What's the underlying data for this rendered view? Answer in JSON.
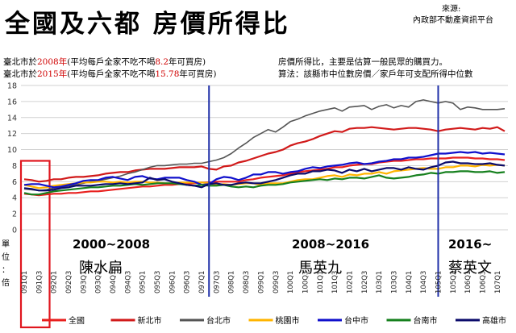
{
  "title": "全國及六都 房價所得比",
  "source": {
    "label": "來源:",
    "org": "內政部不動產資訊平台"
  },
  "notes_left": [
    {
      "pre": "臺北市於",
      "year": "2008年",
      "mid": "(平均每戶全家不吃不喝",
      "value": "8.2",
      "post": "年可買房)"
    },
    {
      "pre": "臺北市於",
      "year": "2015年",
      "mid": "(平均每戶全家不吃不喝",
      "value": "15.78",
      "post": "年可買房)"
    }
  ],
  "notes_right": [
    "房價所得比，主要是估算一般民眾的購買力。",
    "算法：該縣市中位數房價／家戶年可支配所得中位數"
  ],
  "ylabel": "單位：倍",
  "eras": [
    {
      "years": "2000~2008",
      "name": "陳水扁"
    },
    {
      "years": "2008~2016",
      "name": "馬英九"
    },
    {
      "years": "2016~",
      "name": "蔡英文"
    }
  ],
  "colors": {
    "全國": "#e8201e",
    "新北市": "#d11a1a",
    "台北市": "#555555",
    "桃園市": "#ffb400",
    "台中市": "#1010cc",
    "台南市": "#16801e",
    "高雄市": "#0b0b6b",
    "divider": "#1f2fa8",
    "highlight": "#e0161e"
  },
  "chart_data": {
    "type": "line",
    "title": "全國及六都 房價所得比",
    "ylabel": "單位：倍",
    "xlabel": "",
    "ylim": [
      0,
      18
    ],
    "yticks": [
      0,
      2,
      4,
      6,
      8,
      10,
      12,
      14,
      16,
      18
    ],
    "grid": true,
    "legend": "bottom",
    "x": [
      "091Q1",
      "091Q2",
      "091Q3",
      "091Q4",
      "092Q1",
      "092Q2",
      "092Q3",
      "092Q4",
      "093Q1",
      "093Q2",
      "093Q3",
      "093Q4",
      "094Q1",
      "094Q2",
      "094Q3",
      "094Q4",
      "095Q1",
      "095Q2",
      "095Q3",
      "095Q4",
      "096Q1",
      "096Q2",
      "096Q3",
      "096Q4",
      "097Q1",
      "097Q2",
      "097Q3",
      "097Q4",
      "098Q1",
      "098Q2",
      "098Q3",
      "098Q4",
      "099Q1",
      "099Q2",
      "099Q3",
      "099Q4",
      "100Q1",
      "100Q2",
      "100Q3",
      "100Q4",
      "101Q1",
      "101Q2",
      "101Q3",
      "101Q4",
      "102Q1",
      "102Q2",
      "102Q3",
      "102Q4",
      "103Q1",
      "103Q2",
      "103Q3",
      "103Q4",
      "104Q1",
      "104Q2",
      "104Q3",
      "104Q4",
      "105Q1",
      "105Q2",
      "105Q3",
      "105Q4",
      "106Q1",
      "106Q2",
      "106Q3",
      "106Q4",
      "107Q1",
      "107Q2"
    ],
    "xtick_labels": [
      "091Q1",
      "091Q3",
      "092Q1",
      "092Q3",
      "093Q1",
      "093Q3",
      "094Q1",
      "094Q3",
      "095Q1",
      "095Q3",
      "096Q1",
      "096Q3",
      "097Q1",
      "097Q3",
      "098Q1",
      "098Q3",
      "099Q1",
      "099Q3",
      "100Q1",
      "100Q3",
      "101Q1",
      "101Q3",
      "102Q1",
      "102Q3",
      "103Q1",
      "103Q3",
      "104Q1",
      "104Q3",
      "105Q1",
      "105Q3",
      "106Q1",
      "106Q3",
      "107Q1"
    ],
    "dividers": [
      "097Q2",
      "105Q1"
    ],
    "highlight_range": [
      "091Q1",
      "091Q4"
    ],
    "series": [
      {
        "name": "全國",
        "values": [
          4.5,
          4.4,
          4.3,
          4.4,
          4.5,
          4.5,
          4.6,
          4.6,
          4.7,
          4.8,
          4.8,
          4.9,
          5.0,
          5.1,
          5.2,
          5.3,
          5.4,
          5.4,
          5.5,
          5.6,
          5.6,
          5.7,
          5.7,
          5.8,
          5.9,
          5.9,
          6.0,
          6.0,
          6.0,
          6.0,
          6.2,
          6.3,
          6.5,
          6.6,
          6.7,
          6.8,
          7.0,
          7.2,
          7.3,
          7.4,
          7.5,
          7.6,
          7.8,
          7.8,
          8.0,
          8.1,
          8.2,
          8.2,
          8.4,
          8.5,
          8.6,
          8.6,
          8.7,
          8.8,
          8.8,
          8.9,
          8.9,
          8.9,
          9.0,
          9.0,
          9.0,
          8.9,
          8.9,
          8.8,
          8.8,
          8.7
        ]
      },
      {
        "name": "新北市",
        "values": [
          6.3,
          6.2,
          6.0,
          6.1,
          6.3,
          6.3,
          6.5,
          6.6,
          6.6,
          6.7,
          6.8,
          7.0,
          7.1,
          7.2,
          7.2,
          7.4,
          7.5,
          7.6,
          7.6,
          7.6,
          7.7,
          7.8,
          7.8,
          7.8,
          7.9,
          7.6,
          7.5,
          7.9,
          8.0,
          8.4,
          8.6,
          8.9,
          9.2,
          9.5,
          9.7,
          10.0,
          10.5,
          10.8,
          11.0,
          11.3,
          11.7,
          12.0,
          12.3,
          12.2,
          12.6,
          12.7,
          12.7,
          12.8,
          12.7,
          12.6,
          12.5,
          12.6,
          12.7,
          12.7,
          12.6,
          12.5,
          12.3,
          12.5,
          12.6,
          12.7,
          12.6,
          12.5,
          12.7,
          12.6,
          12.8,
          12.3
        ]
      },
      {
        "name": "台北市",
        "values": [
          5.1,
          5.0,
          4.9,
          5.0,
          5.2,
          5.3,
          5.5,
          5.6,
          5.8,
          6.0,
          6.1,
          6.3,
          6.5,
          6.7,
          7.0,
          7.2,
          7.5,
          7.8,
          8.0,
          8.0,
          8.1,
          8.2,
          8.2,
          8.3,
          8.3,
          8.5,
          8.7,
          9.0,
          9.5,
          10.2,
          10.8,
          11.5,
          12.0,
          12.5,
          12.2,
          12.8,
          13.5,
          13.8,
          14.2,
          14.5,
          14.8,
          15.0,
          15.2,
          14.8,
          15.3,
          15.4,
          15.5,
          15.0,
          15.4,
          15.6,
          15.2,
          15.5,
          15.3,
          16.0,
          16.2,
          16.0,
          15.8,
          16.0,
          15.8,
          15.0,
          15.3,
          15.2,
          15.0,
          15.0,
          15.0,
          15.1
        ]
      },
      {
        "name": "桃園市",
        "values": [
          5.6,
          5.4,
          5.2,
          5.3,
          5.5,
          5.6,
          5.7,
          5.8,
          5.9,
          5.9,
          6.0,
          6.0,
          5.9,
          6.0,
          5.9,
          6.0,
          6.0,
          5.9,
          5.9,
          5.8,
          5.8,
          5.9,
          5.9,
          5.9,
          5.9,
          5.8,
          5.6,
          5.7,
          5.6,
          5.7,
          5.8,
          5.8,
          5.6,
          5.8,
          5.8,
          5.8,
          6.0,
          6.2,
          6.3,
          6.3,
          6.5,
          6.7,
          6.8,
          6.6,
          6.9,
          6.8,
          7.0,
          7.0,
          7.2,
          7.0,
          7.3,
          7.4,
          7.5,
          7.6,
          7.7,
          7.6,
          7.6,
          7.8,
          7.8,
          8.0,
          8.0,
          7.9,
          8.1,
          8.0,
          8.1,
          8.0
        ]
      },
      {
        "name": "台中市",
        "values": [
          5.6,
          5.7,
          5.7,
          5.5,
          5.3,
          5.4,
          5.6,
          5.8,
          6.1,
          6.2,
          6.2,
          6.5,
          6.6,
          6.4,
          6.2,
          6.6,
          6.7,
          6.4,
          6.3,
          6.5,
          6.5,
          6.5,
          6.2,
          6.0,
          5.6,
          5.7,
          6.3,
          6.6,
          6.5,
          6.2,
          6.5,
          6.9,
          6.9,
          7.2,
          7.2,
          7.0,
          7.2,
          7.3,
          7.6,
          7.8,
          7.7,
          7.9,
          8.0,
          8.1,
          8.3,
          8.4,
          8.2,
          8.3,
          8.5,
          8.6,
          8.8,
          8.8,
          9.0,
          9.0,
          9.1,
          9.3,
          9.5,
          9.5,
          9.6,
          9.7,
          9.6,
          9.7,
          9.5,
          9.6,
          9.5,
          9.4
        ]
      },
      {
        "name": "台南市",
        "values": [
          4.6,
          4.4,
          4.4,
          4.6,
          4.8,
          4.9,
          5.0,
          5.1,
          5.2,
          5.3,
          5.3,
          5.4,
          5.5,
          5.5,
          5.6,
          5.7,
          5.6,
          5.7,
          5.8,
          5.8,
          5.8,
          5.7,
          5.6,
          5.5,
          5.6,
          5.5,
          5.5,
          5.6,
          5.4,
          5.3,
          5.4,
          5.3,
          5.5,
          5.6,
          5.6,
          5.7,
          5.9,
          6.0,
          6.1,
          6.2,
          6.3,
          6.2,
          6.4,
          6.3,
          6.5,
          6.5,
          6.4,
          6.6,
          6.8,
          6.5,
          6.4,
          6.5,
          6.6,
          6.8,
          6.9,
          7.1,
          7.0,
          7.2,
          7.2,
          7.3,
          7.3,
          7.2,
          7.2,
          7.3,
          7.1,
          7.2
        ]
      },
      {
        "name": "高雄市",
        "values": [
          5.2,
          5.1,
          4.9,
          4.9,
          5.0,
          5.2,
          5.3,
          5.5,
          5.5,
          5.5,
          5.6,
          5.7,
          5.7,
          5.8,
          5.7,
          5.8,
          5.9,
          6.5,
          6.2,
          6.3,
          6.0,
          5.8,
          5.6,
          5.5,
          5.3,
          5.7,
          5.8,
          5.6,
          5.6,
          5.8,
          5.9,
          5.8,
          5.8,
          6.0,
          6.2,
          6.5,
          6.8,
          7.0,
          7.0,
          7.3,
          7.3,
          7.5,
          7.4,
          7.1,
          7.5,
          7.3,
          7.6,
          7.3,
          7.5,
          7.7,
          7.7,
          7.5,
          7.8,
          7.6,
          7.5,
          7.8,
          8.0,
          8.4,
          8.5,
          8.3,
          8.3,
          8.2,
          8.2,
          8.3,
          8.1,
          8.0
        ]
      }
    ]
  }
}
